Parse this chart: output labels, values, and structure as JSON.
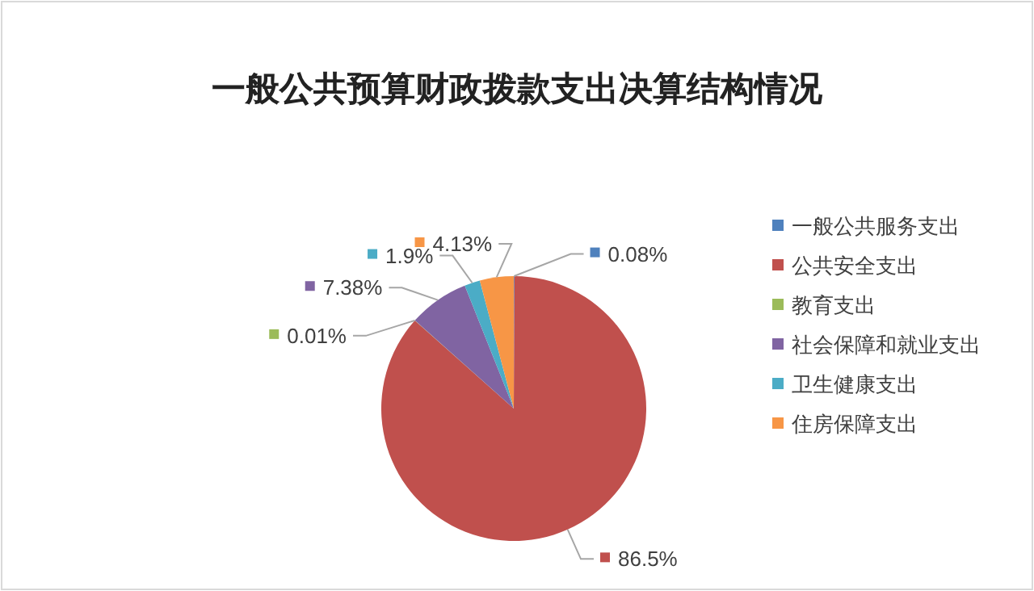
{
  "chart_data": {
    "type": "pie",
    "title": "一般公共预算财政拨款支出决算结构情况",
    "categories": [
      "一般公共服务支出",
      "公共安全支出",
      "教育支出",
      "社会保障和就业支出",
      "卫生健康支出",
      "住房保障支出"
    ],
    "values": [
      0.08,
      86.5,
      0.01,
      7.38,
      1.9,
      4.13
    ],
    "colors": [
      "#4f81bd",
      "#c0504d",
      "#9bbb59",
      "#8064a2",
      "#4bacc6",
      "#f79646"
    ],
    "value_labels": [
      "0.08%",
      "86.5%",
      "0.01%",
      "7.38%",
      "1.9%",
      "4.13%"
    ],
    "legend": "right"
  }
}
